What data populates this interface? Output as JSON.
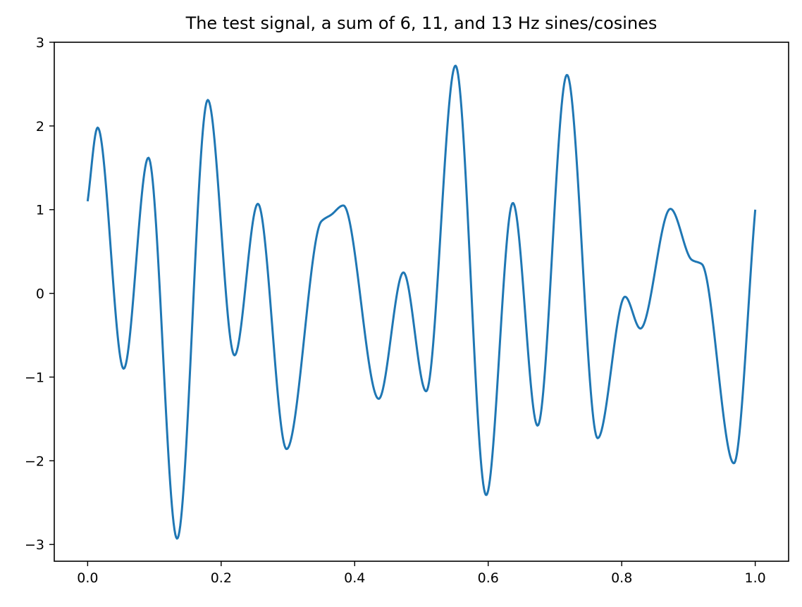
{
  "chart_data": {
    "type": "line",
    "title": "The test signal, a sum of 6, 11, and 13 Hz sines/cosines",
    "xlabel": "",
    "ylabel": "",
    "xlim": [
      -0.05,
      1.05
    ],
    "ylim": [
      -3.2,
      3.0
    ],
    "grid": false,
    "x_ticks": [
      {
        "value": 0.0,
        "label": "0.0"
      },
      {
        "value": 0.2,
        "label": "0.2"
      },
      {
        "value": 0.4,
        "label": "0.4"
      },
      {
        "value": 0.6,
        "label": "0.6"
      },
      {
        "value": 0.8,
        "label": "0.8"
      },
      {
        "value": 1.0,
        "label": "1.0"
      }
    ],
    "y_ticks": [
      {
        "value": 3,
        "label": "3"
      },
      {
        "value": 2,
        "label": "2"
      },
      {
        "value": 1,
        "label": "1"
      },
      {
        "value": 0,
        "label": "0"
      },
      {
        "value": -1,
        "label": "−1"
      },
      {
        "value": -2,
        "label": "−2"
      },
      {
        "value": -3,
        "label": "−3"
      }
    ],
    "series": [
      {
        "color": "#1f77b4",
        "x": [
          0.0,
          0.015,
          0.054,
          0.091,
          0.134,
          0.18,
          0.22,
          0.255,
          0.298,
          0.35,
          0.365,
          0.383,
          0.436,
          0.473,
          0.507,
          0.551,
          0.597,
          0.637,
          0.674,
          0.718,
          0.764,
          0.805,
          0.828,
          0.873,
          0.905,
          0.92,
          0.968,
          1.0
        ],
        "y": [
          1.1,
          1.98,
          -0.9,
          1.62,
          -2.93,
          2.31,
          -0.74,
          1.07,
          -1.86,
          0.86,
          0.94,
          1.05,
          -1.26,
          0.25,
          -1.17,
          2.72,
          -2.41,
          1.08,
          -1.58,
          2.61,
          -1.73,
          -0.04,
          -0.42,
          1.01,
          0.4,
          0.35,
          -2.03,
          1.0
        ]
      }
    ]
  }
}
